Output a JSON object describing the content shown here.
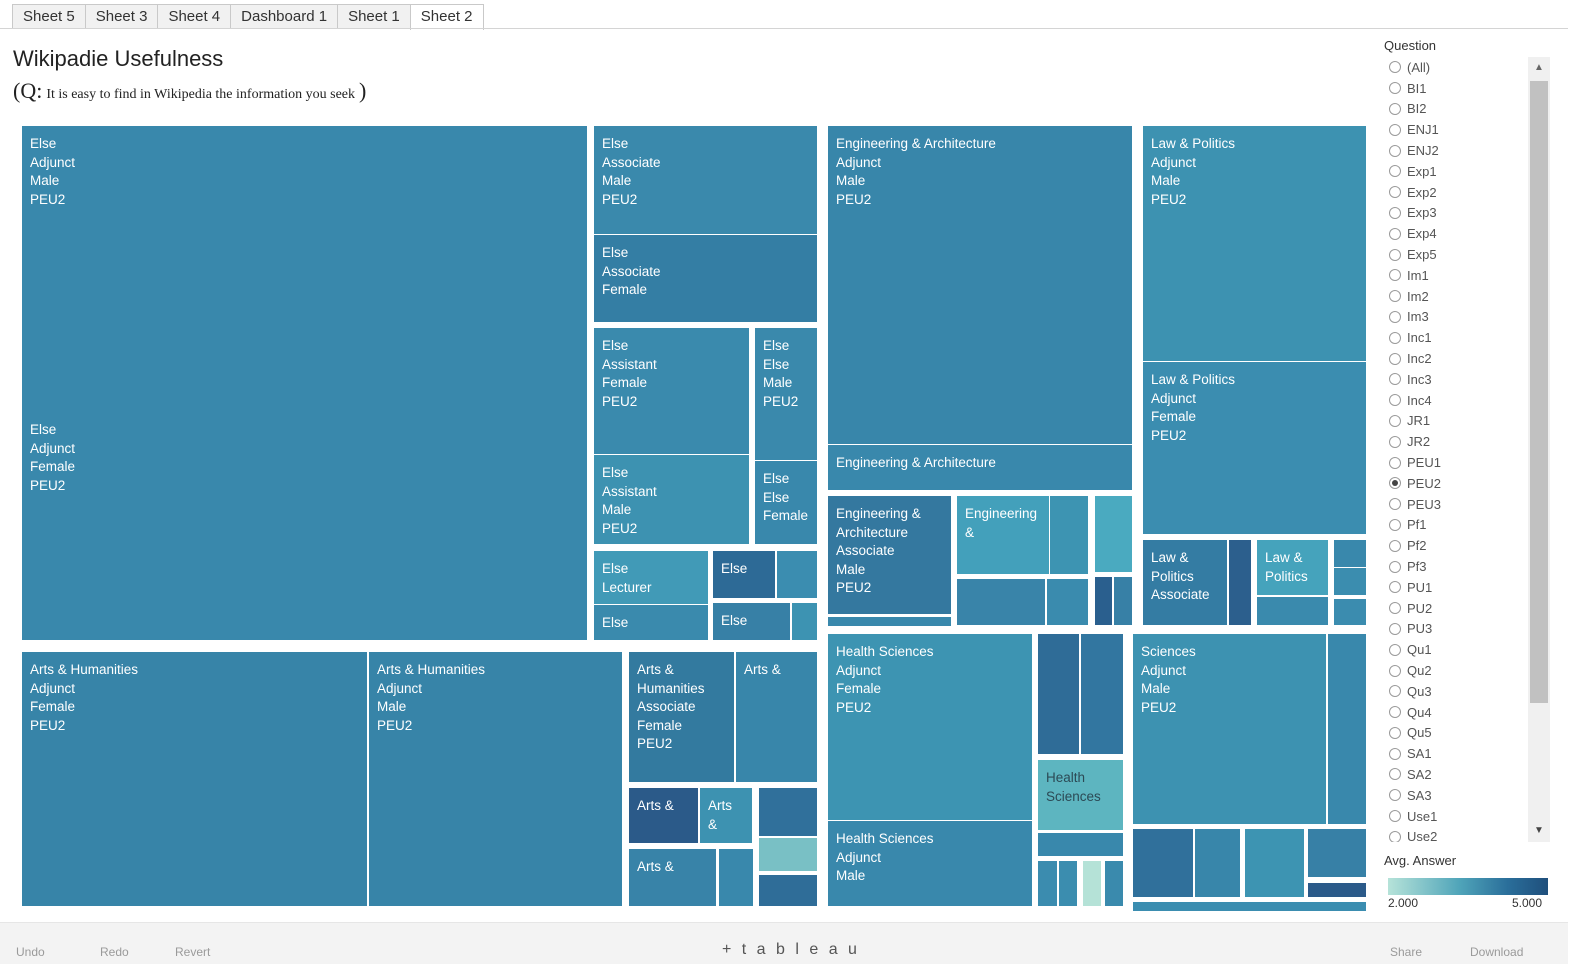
{
  "tabs": [
    "Sheet 5",
    "Sheet 3",
    "Sheet 4",
    "Dashboard 1",
    "Sheet 1",
    "Sheet 2"
  ],
  "active_tab_index": 5,
  "title": "Wikipadie Usefulness",
  "subtitle": {
    "open": "(Q:",
    "text": "It is easy to find in Wikipedia the information you seek",
    "close": ")"
  },
  "treemap": {
    "tiles": [
      {
        "name": "else-adjunct-male",
        "lines": [
          "Else",
          "Adjunct",
          "Male",
          "PEU2"
        ],
        "color": "#3988ac"
      },
      {
        "name": "else-adjunct-female",
        "lines": [
          "Else",
          "Adjunct",
          "Female",
          "PEU2"
        ],
        "color": "#3988ac"
      },
      {
        "name": "else-associate-male",
        "lines": [
          "Else",
          "Associate",
          "Male",
          "PEU2"
        ],
        "color": "#3a89ac"
      },
      {
        "name": "else-associate-female",
        "lines": [
          "Else",
          "Associate",
          "Female"
        ],
        "color": "#347ea4"
      },
      {
        "name": "else-assistant-female",
        "lines": [
          "Else",
          "Assistant",
          "Female",
          "PEU2"
        ],
        "color": "#3a8aad"
      },
      {
        "name": "else-else-male",
        "lines": [
          "Else",
          "Else",
          "Male",
          "PEU2"
        ],
        "color": "#3a89ac"
      },
      {
        "name": "else-assistant-male",
        "lines": [
          "Else",
          "Assistant",
          "Male",
          "PEU2"
        ],
        "color": "#3d92b1"
      },
      {
        "name": "else-else-female",
        "lines": [
          "Else",
          "Else",
          "Female"
        ],
        "color": "#3988ac"
      },
      {
        "name": "else-lecturer",
        "lines": [
          "Else",
          "Lecturer"
        ],
        "color": "#419ab7"
      },
      {
        "name": "else-small-a",
        "lines": [
          "Else"
        ],
        "color": "#2d6a96"
      },
      {
        "name": "else-small-b",
        "lines": [],
        "color": "#3b8db0"
      },
      {
        "name": "else-small-c",
        "lines": [
          "Else"
        ],
        "color": "#3a8aad"
      },
      {
        "name": "else-small-d",
        "lines": [
          "Else"
        ],
        "color": "#3780a6"
      },
      {
        "name": "else-small-e",
        "lines": [],
        "color": "#3d93b2"
      },
      {
        "name": "eng-adjunct-male",
        "lines": [
          "Engineering & Architecture",
          "Adjunct",
          "Male",
          "PEU2"
        ],
        "color": "#3886aa"
      },
      {
        "name": "eng-architecture-b",
        "lines": [
          "Engineering & Architecture"
        ],
        "color": "#3988ac"
      },
      {
        "name": "eng-associate-male",
        "lines": [
          "Engineering &",
          "Architecture",
          "Associate",
          "Male",
          "PEU2"
        ],
        "color": "#34789f"
      },
      {
        "name": "eng-small-a",
        "lines": [
          "Engineering",
          "&"
        ],
        "color": "#43a0bb"
      },
      {
        "name": "eng-small-b",
        "lines": [],
        "color": "#3d94b2"
      },
      {
        "name": "eng-small-c",
        "lines": [],
        "color": "#4aaac0"
      },
      {
        "name": "eng-small-d",
        "lines": [],
        "color": "#3984a9"
      },
      {
        "name": "eng-small-e",
        "lines": [],
        "color": "#3a8bae"
      },
      {
        "name": "eng-small-f",
        "lines": [],
        "color": "#2a5f8e"
      },
      {
        "name": "eng-small-g",
        "lines": [],
        "color": "#3780a6"
      },
      {
        "name": "eng-small-h",
        "lines": [],
        "color": "#3988ac"
      },
      {
        "name": "law-adjunct-male",
        "lines": [
          "Law & Politics",
          "Adjunct",
          "Male",
          "PEU2"
        ],
        "color": "#3d92b1"
      },
      {
        "name": "law-adjunct-female",
        "lines": [
          "Law & Politics",
          "Adjunct",
          "Female",
          "PEU2"
        ],
        "color": "#3b8db0"
      },
      {
        "name": "law-associate",
        "lines": [
          "Law &",
          "Politics",
          "Associate"
        ],
        "color": "#347ca3"
      },
      {
        "name": "law-small-a",
        "lines": [],
        "color": "#2c5f8d"
      },
      {
        "name": "law-politics-b",
        "lines": [
          "Law &",
          "Politics"
        ],
        "color": "#45a3bc"
      },
      {
        "name": "law-small-b",
        "lines": [],
        "color": "#3988ac"
      },
      {
        "name": "law-small-c",
        "lines": [],
        "color": "#3b8daf"
      },
      {
        "name": "law-small-d",
        "lines": [],
        "color": "#3a8aad"
      },
      {
        "name": "law-small-e",
        "lines": [],
        "color": "#3b8caf"
      },
      {
        "name": "arts-adjunct-female",
        "lines": [
          "Arts & Humanities",
          "Adjunct",
          "Female",
          "PEU2"
        ],
        "color": "#3784a8"
      },
      {
        "name": "arts-adjunct-male",
        "lines": [
          "Arts & Humanities",
          "Adjunct",
          "Male",
          "PEU2"
        ],
        "color": "#3784a8"
      },
      {
        "name": "arts-associate-female",
        "lines": [
          "Arts &",
          "Humanities",
          "Associate",
          "Female",
          "PEU2"
        ],
        "color": "#337a9f"
      },
      {
        "name": "arts-small-a",
        "lines": [
          "Arts &"
        ],
        "color": "#3886aa"
      },
      {
        "name": "arts-small-b",
        "lines": [
          "Arts &"
        ],
        "color": "#2b5a89"
      },
      {
        "name": "arts-small-c",
        "lines": [
          "Arts",
          "&"
        ],
        "color": "#3d92b1"
      },
      {
        "name": "arts-small-d",
        "lines": [],
        "color": "#30709b"
      },
      {
        "name": "arts-small-e",
        "lines": [],
        "color": "#79c0c5"
      },
      {
        "name": "arts-small-f",
        "lines": [
          "Arts &"
        ],
        "color": "#3883a8"
      },
      {
        "name": "arts-small-g",
        "lines": [],
        "color": "#3988ac"
      },
      {
        "name": "arts-small-h",
        "lines": [],
        "color": "#2f6d98"
      },
      {
        "name": "health-adjunct-female",
        "lines": [
          "Health Sciences",
          "Adjunct",
          "Female",
          "PEU2"
        ],
        "color": "#3d94b2"
      },
      {
        "name": "health-adjunct-male",
        "lines": [
          "Health Sciences",
          "Adjunct",
          "Male"
        ],
        "color": "#3988ac"
      },
      {
        "name": "health-small-a",
        "lines": [],
        "color": "#2f6c97"
      },
      {
        "name": "health-small-b",
        "lines": [],
        "color": "#3276a0"
      },
      {
        "name": "health-sciences-b",
        "lines": [
          "Health",
          "Sciences"
        ],
        "color": "#5db5c0"
      },
      {
        "name": "health-small-c",
        "lines": [],
        "color": "#3988ac"
      },
      {
        "name": "health-small-d",
        "lines": [],
        "color": "#3b8caf"
      },
      {
        "name": "health-small-e",
        "lines": [],
        "color": "#3b8daf"
      },
      {
        "name": "health-small-f",
        "lines": [],
        "color": "#b5e2d7"
      },
      {
        "name": "health-small-g",
        "lines": [],
        "color": "#3a8aad"
      },
      {
        "name": "sci-adjunct-male",
        "lines": [
          "Sciences",
          "Adjunct",
          "Male",
          "PEU2"
        ],
        "color": "#3d92b1"
      },
      {
        "name": "sci-small-a",
        "lines": [],
        "color": "#3988ac"
      },
      {
        "name": "sci-small-b",
        "lines": [],
        "color": "#30709b"
      },
      {
        "name": "sci-small-c",
        "lines": [],
        "color": "#3886aa"
      },
      {
        "name": "sci-small-d",
        "lines": [],
        "color": "#3d94b2"
      },
      {
        "name": "sci-small-e",
        "lines": [],
        "color": "#3780a6"
      },
      {
        "name": "sci-small-f",
        "lines": [],
        "color": "#2b5a89"
      },
      {
        "name": "sci-small-g",
        "lines": [],
        "color": "#3b8db0"
      }
    ]
  },
  "filter": {
    "title": "Question",
    "options": [
      "(All)",
      "BI1",
      "BI2",
      "ENJ1",
      "ENJ2",
      "Exp1",
      "Exp2",
      "Exp3",
      "Exp4",
      "Exp5",
      "Im1",
      "Im2",
      "Im3",
      "Inc1",
      "Inc2",
      "Inc3",
      "Inc4",
      "JR1",
      "JR2",
      "PEU1",
      "PEU2",
      "PEU3",
      "Pf1",
      "Pf2",
      "Pf3",
      "PU1",
      "PU2",
      "PU3",
      "Qu1",
      "Qu2",
      "Qu3",
      "Qu4",
      "Qu5",
      "SA1",
      "SA2",
      "SA3",
      "Use1",
      "Use2"
    ],
    "selected": "PEU2"
  },
  "color_legend": {
    "title": "Avg. Answer",
    "min": "2.000",
    "max": "5.000",
    "colors": [
      "#b6e3d9",
      "#4fa4b9",
      "#2a6e9a",
      "#1f4f7c"
    ]
  },
  "footer": {
    "undo": "Undo",
    "redo": "Redo",
    "revert": "Revert",
    "logo": "+ t a b l e a u",
    "share": "Share",
    "download": "Download"
  }
}
